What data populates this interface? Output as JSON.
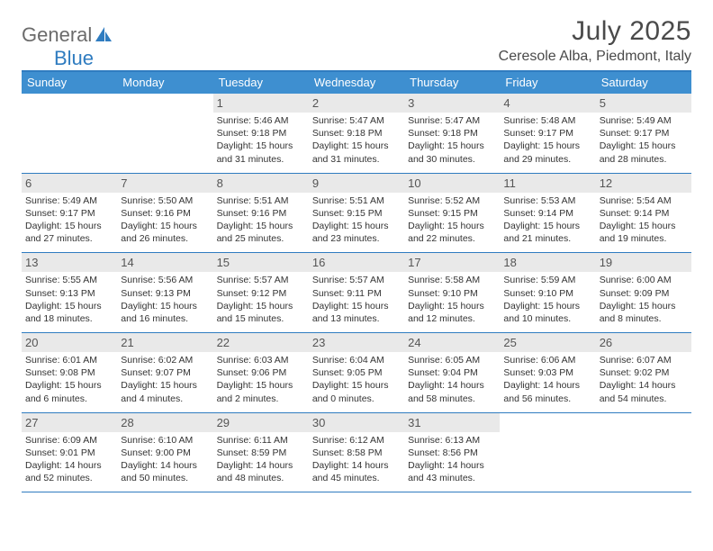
{
  "brand": {
    "part1": "General",
    "part2": "Blue"
  },
  "title": "July 2025",
  "location": "Ceresole Alba, Piedmont, Italy",
  "colors": {
    "header_bg": "#3e8fd0",
    "border": "#2f7cc0",
    "daynum_bg": "#e9e9e9",
    "text": "#333333",
    "title_text": "#4a4a4a"
  },
  "day_headers": [
    "Sunday",
    "Monday",
    "Tuesday",
    "Wednesday",
    "Thursday",
    "Friday",
    "Saturday"
  ],
  "weeks": [
    [
      null,
      null,
      {
        "n": "1",
        "sunrise": "5:46 AM",
        "sunset": "9:18 PM",
        "daylight": "15 hours and 31 minutes."
      },
      {
        "n": "2",
        "sunrise": "5:47 AM",
        "sunset": "9:18 PM",
        "daylight": "15 hours and 31 minutes."
      },
      {
        "n": "3",
        "sunrise": "5:47 AM",
        "sunset": "9:18 PM",
        "daylight": "15 hours and 30 minutes."
      },
      {
        "n": "4",
        "sunrise": "5:48 AM",
        "sunset": "9:17 PM",
        "daylight": "15 hours and 29 minutes."
      },
      {
        "n": "5",
        "sunrise": "5:49 AM",
        "sunset": "9:17 PM",
        "daylight": "15 hours and 28 minutes."
      }
    ],
    [
      {
        "n": "6",
        "sunrise": "5:49 AM",
        "sunset": "9:17 PM",
        "daylight": "15 hours and 27 minutes."
      },
      {
        "n": "7",
        "sunrise": "5:50 AM",
        "sunset": "9:16 PM",
        "daylight": "15 hours and 26 minutes."
      },
      {
        "n": "8",
        "sunrise": "5:51 AM",
        "sunset": "9:16 PM",
        "daylight": "15 hours and 25 minutes."
      },
      {
        "n": "9",
        "sunrise": "5:51 AM",
        "sunset": "9:15 PM",
        "daylight": "15 hours and 23 minutes."
      },
      {
        "n": "10",
        "sunrise": "5:52 AM",
        "sunset": "9:15 PM",
        "daylight": "15 hours and 22 minutes."
      },
      {
        "n": "11",
        "sunrise": "5:53 AM",
        "sunset": "9:14 PM",
        "daylight": "15 hours and 21 minutes."
      },
      {
        "n": "12",
        "sunrise": "5:54 AM",
        "sunset": "9:14 PM",
        "daylight": "15 hours and 19 minutes."
      }
    ],
    [
      {
        "n": "13",
        "sunrise": "5:55 AM",
        "sunset": "9:13 PM",
        "daylight": "15 hours and 18 minutes."
      },
      {
        "n": "14",
        "sunrise": "5:56 AM",
        "sunset": "9:13 PM",
        "daylight": "15 hours and 16 minutes."
      },
      {
        "n": "15",
        "sunrise": "5:57 AM",
        "sunset": "9:12 PM",
        "daylight": "15 hours and 15 minutes."
      },
      {
        "n": "16",
        "sunrise": "5:57 AM",
        "sunset": "9:11 PM",
        "daylight": "15 hours and 13 minutes."
      },
      {
        "n": "17",
        "sunrise": "5:58 AM",
        "sunset": "9:10 PM",
        "daylight": "15 hours and 12 minutes."
      },
      {
        "n": "18",
        "sunrise": "5:59 AM",
        "sunset": "9:10 PM",
        "daylight": "15 hours and 10 minutes."
      },
      {
        "n": "19",
        "sunrise": "6:00 AM",
        "sunset": "9:09 PM",
        "daylight": "15 hours and 8 minutes."
      }
    ],
    [
      {
        "n": "20",
        "sunrise": "6:01 AM",
        "sunset": "9:08 PM",
        "daylight": "15 hours and 6 minutes."
      },
      {
        "n": "21",
        "sunrise": "6:02 AM",
        "sunset": "9:07 PM",
        "daylight": "15 hours and 4 minutes."
      },
      {
        "n": "22",
        "sunrise": "6:03 AM",
        "sunset": "9:06 PM",
        "daylight": "15 hours and 2 minutes."
      },
      {
        "n": "23",
        "sunrise": "6:04 AM",
        "sunset": "9:05 PM",
        "daylight": "15 hours and 0 minutes."
      },
      {
        "n": "24",
        "sunrise": "6:05 AM",
        "sunset": "9:04 PM",
        "daylight": "14 hours and 58 minutes."
      },
      {
        "n": "25",
        "sunrise": "6:06 AM",
        "sunset": "9:03 PM",
        "daylight": "14 hours and 56 minutes."
      },
      {
        "n": "26",
        "sunrise": "6:07 AM",
        "sunset": "9:02 PM",
        "daylight": "14 hours and 54 minutes."
      }
    ],
    [
      {
        "n": "27",
        "sunrise": "6:09 AM",
        "sunset": "9:01 PM",
        "daylight": "14 hours and 52 minutes."
      },
      {
        "n": "28",
        "sunrise": "6:10 AM",
        "sunset": "9:00 PM",
        "daylight": "14 hours and 50 minutes."
      },
      {
        "n": "29",
        "sunrise": "6:11 AM",
        "sunset": "8:59 PM",
        "daylight": "14 hours and 48 minutes."
      },
      {
        "n": "30",
        "sunrise": "6:12 AM",
        "sunset": "8:58 PM",
        "daylight": "14 hours and 45 minutes."
      },
      {
        "n": "31",
        "sunrise": "6:13 AM",
        "sunset": "8:56 PM",
        "daylight": "14 hours and 43 minutes."
      },
      null,
      null
    ]
  ],
  "labels": {
    "sunrise": "Sunrise:",
    "sunset": "Sunset:",
    "daylight": "Daylight:"
  }
}
